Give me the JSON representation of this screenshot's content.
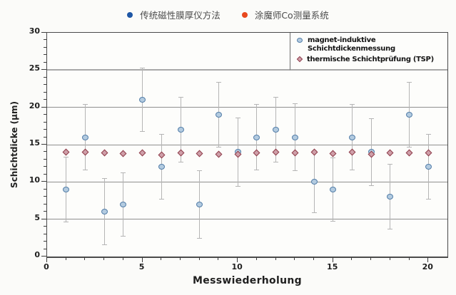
{
  "top_legend": {
    "items": [
      {
        "label": "传统磁性膜厚仪方法",
        "icon": "circle-icon",
        "color": "#1e56a5"
      },
      {
        "label": "涂魔师Co测量系统",
        "icon": "circle-icon",
        "color": "#e8481e"
      }
    ]
  },
  "chart_data": {
    "type": "scatter",
    "title": "",
    "xlabel": "Messwiederholung",
    "ylabel": "Schichtdicke (µm)",
    "xlim": [
      0,
      21
    ],
    "ylim": [
      0,
      30
    ],
    "x_major_ticks": [
      0,
      5,
      10,
      15,
      20
    ],
    "y_major_ticks": [
      0,
      5,
      10,
      15,
      20,
      25,
      30
    ],
    "minor_tick_step": 1,
    "grid": {
      "y_values": [
        5,
        10,
        15,
        20,
        25
      ],
      "emphasis": 25
    },
    "legend_position": "top-right-inside",
    "error_bar_color": "#b5b5b5",
    "x": [
      1,
      2,
      3,
      4,
      5,
      6,
      7,
      8,
      9,
      10,
      11,
      12,
      13,
      14,
      15,
      16,
      17,
      18,
      19,
      20
    ],
    "series": [
      {
        "name": "magnet-induktive Schichtdickenmessung",
        "marker": "circle",
        "fill": "#b3cbe0",
        "stroke": "#527da8",
        "values": [
          9,
          16,
          6,
          7,
          21,
          12,
          17,
          7,
          19,
          14,
          16,
          17,
          16,
          10,
          9,
          16,
          14,
          8,
          19,
          12
        ],
        "errors": [
          4.4,
          4.4,
          4.5,
          4.3,
          4.3,
          4.4,
          4.4,
          4.6,
          4.4,
          4.6,
          4.4,
          4.4,
          4.5,
          4.2,
          4.3,
          4.4,
          4.5,
          4.4,
          4.4,
          4.4
        ]
      },
      {
        "name": "thermische Schichtprüfung (TSP)",
        "marker": "diamond",
        "fill": "#cf9fa9",
        "stroke": "#8f3f4c",
        "values": [
          14,
          14,
          13.9,
          13.8,
          13.9,
          13.6,
          13.9,
          13.8,
          13.7,
          13.7,
          13.9,
          14,
          13.9,
          14,
          13.8,
          14,
          13.7,
          13.9,
          13.9,
          13.9
        ]
      }
    ]
  }
}
